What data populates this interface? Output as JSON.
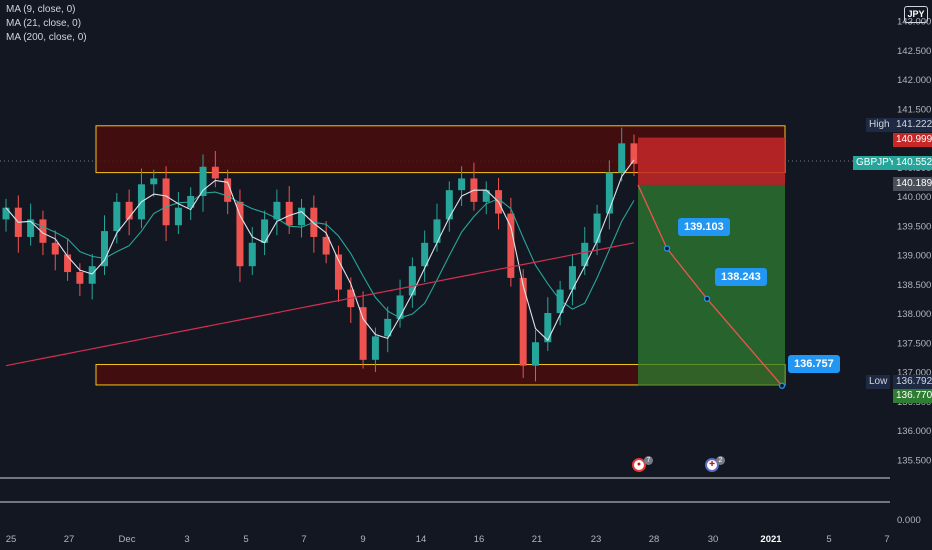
{
  "symbol": "GBPJPY",
  "currency_badge": "JPY",
  "indicators": [
    "MA (9, close, 0)",
    "MA (21, close, 0)",
    "MA (200, close, 0)"
  ],
  "price_axis": {
    "ticks": [
      "143.000",
      "142.500",
      "142.000",
      "141.500",
      "141.000",
      "140.500",
      "140.000",
      "139.500",
      "139.000",
      "138.500",
      "138.000",
      "137.500",
      "137.000",
      "136.500",
      "136.000",
      "135.500",
      "0.000"
    ],
    "high_label": "High",
    "high_value": "141.222",
    "stop_value": "140.999",
    "symbol_label": "GBPJPY",
    "last_price": "140.552",
    "entry_value": "140.189",
    "low_label": "Low",
    "low_value": "136.792",
    "target_value": "136.770"
  },
  "time_axis": [
    "25",
    "27",
    "Dec",
    "3",
    "5",
    "7",
    "9",
    "14",
    "16",
    "21",
    "23",
    "28",
    "30",
    "2021",
    "5",
    "7"
  ],
  "targets": [
    "139.103",
    "138.243",
    "136.757"
  ],
  "events": [
    "7",
    "2"
  ],
  "colors": {
    "background": "#131722",
    "up": "#26a69a",
    "down": "#ef5350",
    "ma9": "#e0e3eb",
    "ma21": "#26a69a",
    "ma200": "#d32f4f",
    "zone_border": "#f5c518",
    "stop": "#c62828",
    "profit": "#2e7d32",
    "tag": "#2196f3"
  },
  "chart_data": {
    "type": "candlestick",
    "series": [
      {
        "name": "GBPJPY",
        "values": [
          139.8,
          139.3,
          139.6,
          139.2,
          139.0,
          138.7,
          138.5,
          138.8,
          139.4,
          139.9,
          139.6,
          140.2,
          140.3,
          139.5,
          139.8,
          140.0,
          140.5,
          140.3,
          139.9,
          138.8,
          139.2,
          139.6,
          139.9,
          139.5,
          139.8,
          139.3,
          139.0,
          138.4,
          138.1,
          137.2,
          137.6,
          137.9,
          138.3,
          138.8,
          139.2,
          139.6,
          140.1,
          140.3,
          139.9,
          140.1,
          139.7,
          138.6,
          137.1,
          137.5,
          138.0,
          138.4,
          138.8,
          139.2,
          139.7,
          140.4,
          140.9,
          140.55
        ]
      }
    ],
    "annotations": {
      "resistance_zone": [
        140.4,
        141.2
      ],
      "support_zone": [
        136.77,
        137.12
      ],
      "short_entry": 140.189,
      "stop_loss": 140.999,
      "targets": [
        139.103,
        138.243,
        136.757
      ]
    }
  }
}
